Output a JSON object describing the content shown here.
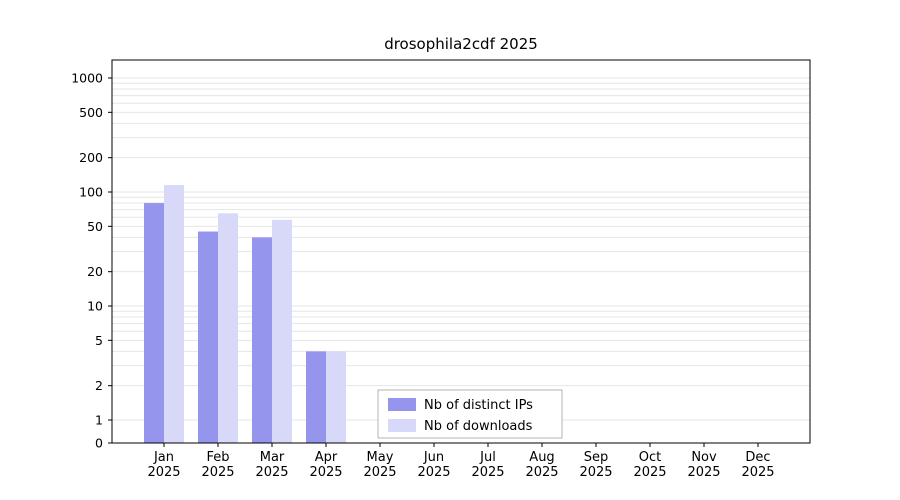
{
  "chart_data": {
    "type": "bar",
    "title": "drosophila2cdf 2025",
    "categories": [
      "Jan",
      "Feb",
      "Mar",
      "Apr",
      "May",
      "Jun",
      "Jul",
      "Aug",
      "Sep",
      "Oct",
      "Nov",
      "Dec"
    ],
    "category_year": "2025",
    "series": [
      {
        "name": "Nb of distinct IPs",
        "color": "#9595ee",
        "values": [
          80,
          45,
          40,
          4,
          0,
          0,
          0,
          0,
          0,
          0,
          0,
          0
        ]
      },
      {
        "name": "Nb of downloads",
        "color": "#d8d8f8",
        "values": [
          115,
          65,
          57,
          4,
          0,
          0,
          0,
          0,
          0,
          0,
          0,
          0
        ]
      }
    ],
    "y_ticks": [
      0,
      1,
      2,
      5,
      10,
      20,
      50,
      100,
      200,
      500,
      1000
    ],
    "y_scale": "pseudo-log",
    "ylim": [
      0,
      1000
    ],
    "grid": "horizontal-minor-log",
    "legend_position": "bottom-center"
  },
  "colors": {
    "background": "#ffffff",
    "grid": "#e6e6e6",
    "axis": "#000000",
    "text": "#000000",
    "legend_border": "#b3b3b3",
    "legend_background": "#ffffff"
  }
}
